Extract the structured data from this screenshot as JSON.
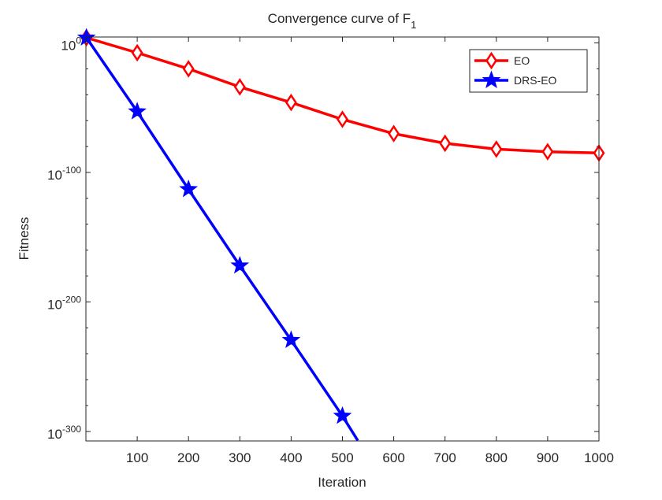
{
  "chart_data": {
    "type": "line",
    "title": "Convergence curve of F",
    "title_subscript": "1",
    "xlabel": "Iteration",
    "ylabel": "Fitness",
    "xlim": [
      0,
      1000
    ],
    "ylim_log10": [
      4.5,
      -307
    ],
    "yscale": "log",
    "x_ticks": [
      100,
      200,
      300,
      400,
      500,
      600,
      700,
      800,
      900,
      1000
    ],
    "x_tick_labels": [
      "100",
      "200",
      "300",
      "400",
      "500",
      "600",
      "700",
      "800",
      "900",
      "1000"
    ],
    "y_ticks_log10": [
      0,
      -100,
      -200,
      -300
    ],
    "y_tick_labels": [
      {
        "base": "10",
        "exp": "0"
      },
      {
        "base": "10",
        "exp": "-100"
      },
      {
        "base": "10",
        "exp": "-200"
      },
      {
        "base": "10",
        "exp": "-300"
      }
    ],
    "legend_position": "top-right",
    "series": [
      {
        "name": "EO",
        "color": "#ff0000",
        "marker": "diamond",
        "x": [
          1,
          100,
          200,
          300,
          400,
          500,
          600,
          700,
          800,
          900,
          1000
        ],
        "y_log10": [
          4,
          -7.6,
          -20,
          -34,
          -46,
          -59,
          -70,
          -77.5,
          -82,
          -84,
          -85
        ]
      },
      {
        "name": "DRS-EO",
        "color": "#0000ff",
        "marker": "star",
        "x": [
          1,
          100,
          200,
          300,
          400,
          500,
          530
        ],
        "y_log10": [
          4,
          -53,
          -113,
          -172,
          -229.5,
          -288,
          -307
        ],
        "marker_count": 6
      }
    ]
  }
}
